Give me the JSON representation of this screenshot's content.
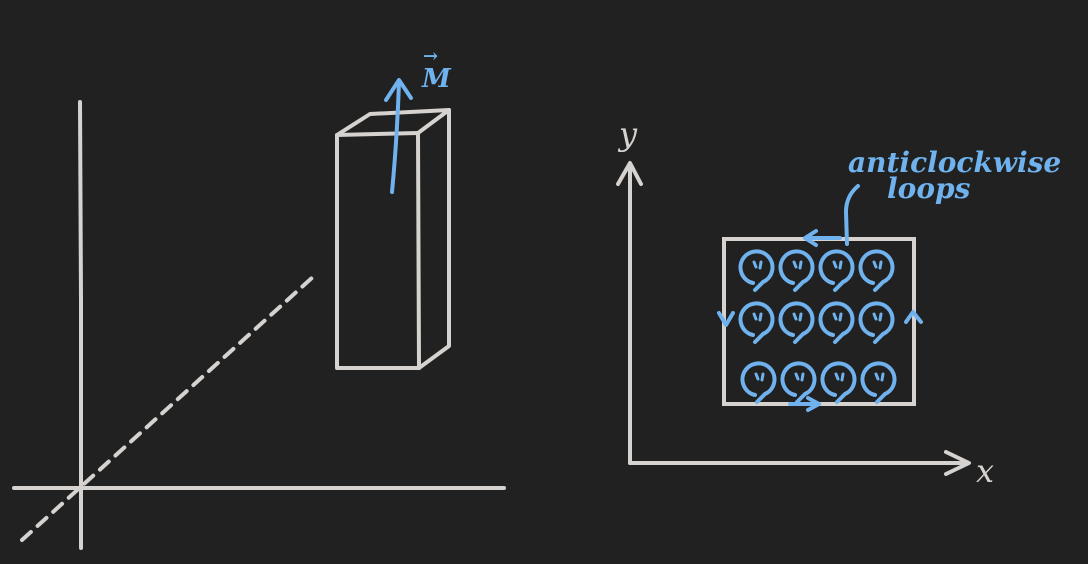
{
  "colors": {
    "background": "#212121",
    "chalk": "#d5d2cf",
    "ink": "#6fb2ee"
  },
  "left_figure": {
    "vector_label": "M",
    "vector_symbol": "→"
  },
  "right_figure": {
    "y_axis_label": "y",
    "x_axis_label": "x",
    "annotation_line1": "anticlockwise",
    "annotation_line2": "loops",
    "loop_grid": {
      "rows": 3,
      "cols": 4
    }
  }
}
